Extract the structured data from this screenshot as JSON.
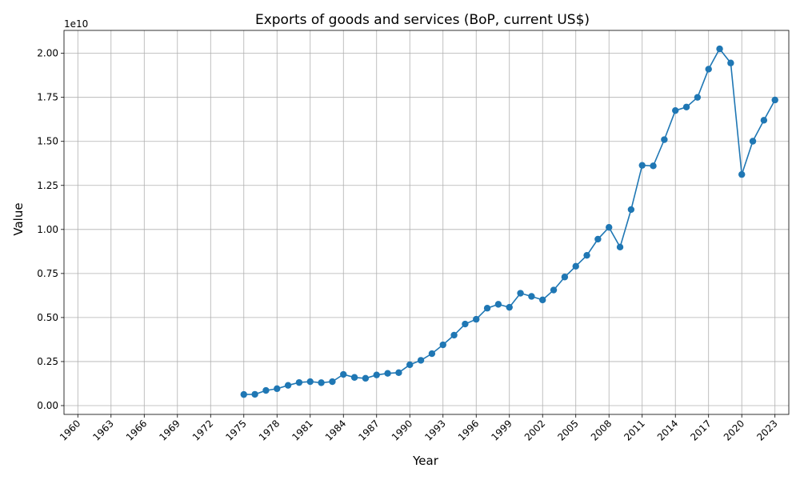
{
  "chart_data": {
    "type": "line",
    "title": "Exports of goods and services (BoP, current US$)",
    "xlabel": "Year",
    "ylabel": "Value",
    "offset_label": "1e10",
    "xlim": [
      1958.75,
      2024.25
    ],
    "ylim": [
      -0.05,
      2.13
    ],
    "grid": true,
    "colors": {
      "series": "#1f77b4",
      "grid": "#b0b0b0"
    },
    "x_ticks": [
      1960,
      1963,
      1966,
      1969,
      1972,
      1975,
      1978,
      1981,
      1984,
      1987,
      1990,
      1993,
      1996,
      1999,
      2002,
      2005,
      2008,
      2011,
      2014,
      2017,
      2020,
      2023
    ],
    "x_tick_labels": [
      "1960",
      "1963",
      "1966",
      "1969",
      "1972",
      "1975",
      "1978",
      "1981",
      "1984",
      "1987",
      "1990",
      "1993",
      "1996",
      "1999",
      "2002",
      "2005",
      "2008",
      "2011",
      "2014",
      "2017",
      "2020",
      "2023"
    ],
    "y_ticks": [
      0,
      0.25,
      0.5,
      0.75,
      1.0,
      1.25,
      1.5,
      1.75,
      2.0
    ],
    "y_tick_labels": [
      "0.00",
      "0.25",
      "0.50",
      "0.75",
      "1.00",
      "1.25",
      "1.50",
      "1.75",
      "2.00"
    ],
    "series": [
      {
        "x": [
          1975,
          1976,
          1977,
          1978,
          1979,
          1980,
          1981,
          1982,
          1983,
          1984,
          1985,
          1986,
          1987,
          1988,
          1989,
          1990,
          1991,
          1992,
          1993,
          1994,
          1995,
          1996,
          1997,
          1998,
          1999,
          2000,
          2001,
          2002,
          2003,
          2004,
          2005,
          2006,
          2007,
          2008,
          2009,
          2010,
          2011,
          2012,
          2013,
          2014,
          2015,
          2016,
          2017,
          2018,
          2019,
          2020,
          2021,
          2022,
          2023
        ],
        "values": [
          0.063,
          0.064,
          0.086,
          0.096,
          0.115,
          0.131,
          0.136,
          0.13,
          0.136,
          0.177,
          0.16,
          0.155,
          0.174,
          0.183,
          0.187,
          0.232,
          0.257,
          0.295,
          0.345,
          0.4,
          0.463,
          0.49,
          0.553,
          0.575,
          0.558,
          0.638,
          0.62,
          0.6,
          0.656,
          0.73,
          0.791,
          0.853,
          0.945,
          1.012,
          0.9,
          1.113,
          1.364,
          1.361,
          1.51,
          1.675,
          1.695,
          1.75,
          1.91,
          2.025,
          1.945,
          1.312,
          1.501,
          1.62,
          1.735
        ]
      }
    ]
  }
}
